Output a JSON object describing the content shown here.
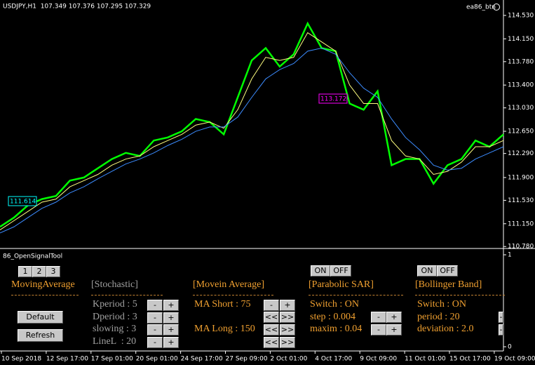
{
  "header": {
    "symbol_line": "USDJPY,H1  107.349 107.376 107.295 107.329",
    "button": "ea86_btn"
  },
  "chart_data": {
    "type": "line",
    "x_labels": [
      "10 Sep 2018",
      "12 Sep 17:00",
      "17 Sep 01:00",
      "20 Sep 01:00",
      "24 Sep 17:00",
      "27 Sep 09:00",
      "2 Oct 01:00",
      "4 Oct 17:00",
      "9 Oct 09:00",
      "11 Oct 01:00",
      "15 Oct 17:00",
      "19 Oct 09:00"
    ],
    "series": [
      {
        "color": "#00ff00",
        "values": [
          111.1,
          111.25,
          111.45,
          111.55,
          111.6,
          111.85,
          111.9,
          112.05,
          112.2,
          112.3,
          112.25,
          112.5,
          112.55,
          112.65,
          112.85,
          112.8,
          112.6,
          113.2,
          113.8,
          114.0,
          113.7,
          113.9,
          114.4,
          114.0,
          113.95,
          113.1,
          113.0,
          113.3,
          112.1,
          112.2,
          112.2,
          111.8,
          112.1,
          112.2,
          112.5,
          112.4,
          112.6
        ]
      },
      {
        "color": "#ffff80",
        "values": [
          111.05,
          111.2,
          111.35,
          111.5,
          111.55,
          111.75,
          111.85,
          111.95,
          112.1,
          112.2,
          112.25,
          112.4,
          112.5,
          112.6,
          112.75,
          112.8,
          112.7,
          113.0,
          113.5,
          113.85,
          113.8,
          113.85,
          114.25,
          114.1,
          113.95,
          113.4,
          113.1,
          113.1,
          112.5,
          112.25,
          112.2,
          111.95,
          112.0,
          112.15,
          112.4,
          112.4,
          112.5
        ]
      },
      {
        "color": "#3c8cff",
        "values": [
          111.0,
          111.1,
          111.25,
          111.4,
          111.5,
          111.65,
          111.75,
          111.88,
          112.0,
          112.12,
          112.2,
          112.3,
          112.42,
          112.52,
          112.65,
          112.72,
          112.72,
          112.88,
          113.2,
          113.5,
          113.65,
          113.75,
          113.95,
          114.0,
          113.9,
          113.6,
          113.35,
          113.2,
          112.85,
          112.55,
          112.35,
          112.1,
          112.02,
          112.05,
          112.2,
          112.3,
          112.4
        ]
      }
    ],
    "ylim": [
      110.76,
      114.78
    ],
    "yticks": [
      {
        "value": 114.53,
        "label": "114.530"
      },
      {
        "value": 114.15,
        "label": "114.150"
      },
      {
        "value": 113.78,
        "label": "113.780"
      },
      {
        "value": 113.4,
        "label": "113.400"
      },
      {
        "value": 113.03,
        "label": "113.030"
      },
      {
        "value": 112.65,
        "label": "112.650"
      },
      {
        "value": 112.29,
        "label": "112.290"
      },
      {
        "value": 111.9,
        "label": "111.900"
      },
      {
        "value": 111.53,
        "label": "111.530"
      },
      {
        "value": 111.15,
        "label": "111.150"
      },
      {
        "value": 110.78,
        "label": "110.780"
      }
    ],
    "price_tags": [
      {
        "label": "111.614",
        "color": "#00ffff"
      },
      {
        "label": "113.172",
        "color": "#ff00ff"
      }
    ]
  },
  "indicator_window": {
    "title": "86_OpenSignalTool",
    "ylim": [
      0,
      1
    ],
    "yticks": [
      1,
      0
    ]
  },
  "tool_panel": {
    "page_buttons": [
      "1",
      "2",
      "3"
    ],
    "moving_average_tab": "MovingAverage",
    "default_button": "Default",
    "refresh_button": "Refresh",
    "stochastic": {
      "title": "[Stochastic]",
      "rows": [
        "Kperiod : 5",
        "Dperiod : 3",
        "slowing : 3",
        "LineL  : 20"
      ],
      "buttons": [
        "-",
        "+"
      ]
    },
    "ma": {
      "title": "[Movein Average]",
      "short": "MA Short : 75",
      "long": "MA Long : 150",
      "buttons": [
        "-",
        "+",
        "<<",
        ">>",
        "<<",
        ">>",
        "<<",
        ">>"
      ]
    },
    "sar": {
      "on": "ON",
      "off": "OFF",
      "title": "[Parabolic SAR]",
      "rows": [
        "Switch : ON",
        "step : 0.004",
        "maxim : 0.04"
      ],
      "buttons": [
        "-",
        "+",
        "-",
        "+"
      ]
    },
    "bb": {
      "on": "ON",
      "off": "OFF",
      "title": "[Bollinger Band]",
      "rows": [
        "Switch : ON",
        "period : 20",
        "deviation : 2.0"
      ],
      "buttons": [
        "-",
        "-"
      ]
    }
  }
}
